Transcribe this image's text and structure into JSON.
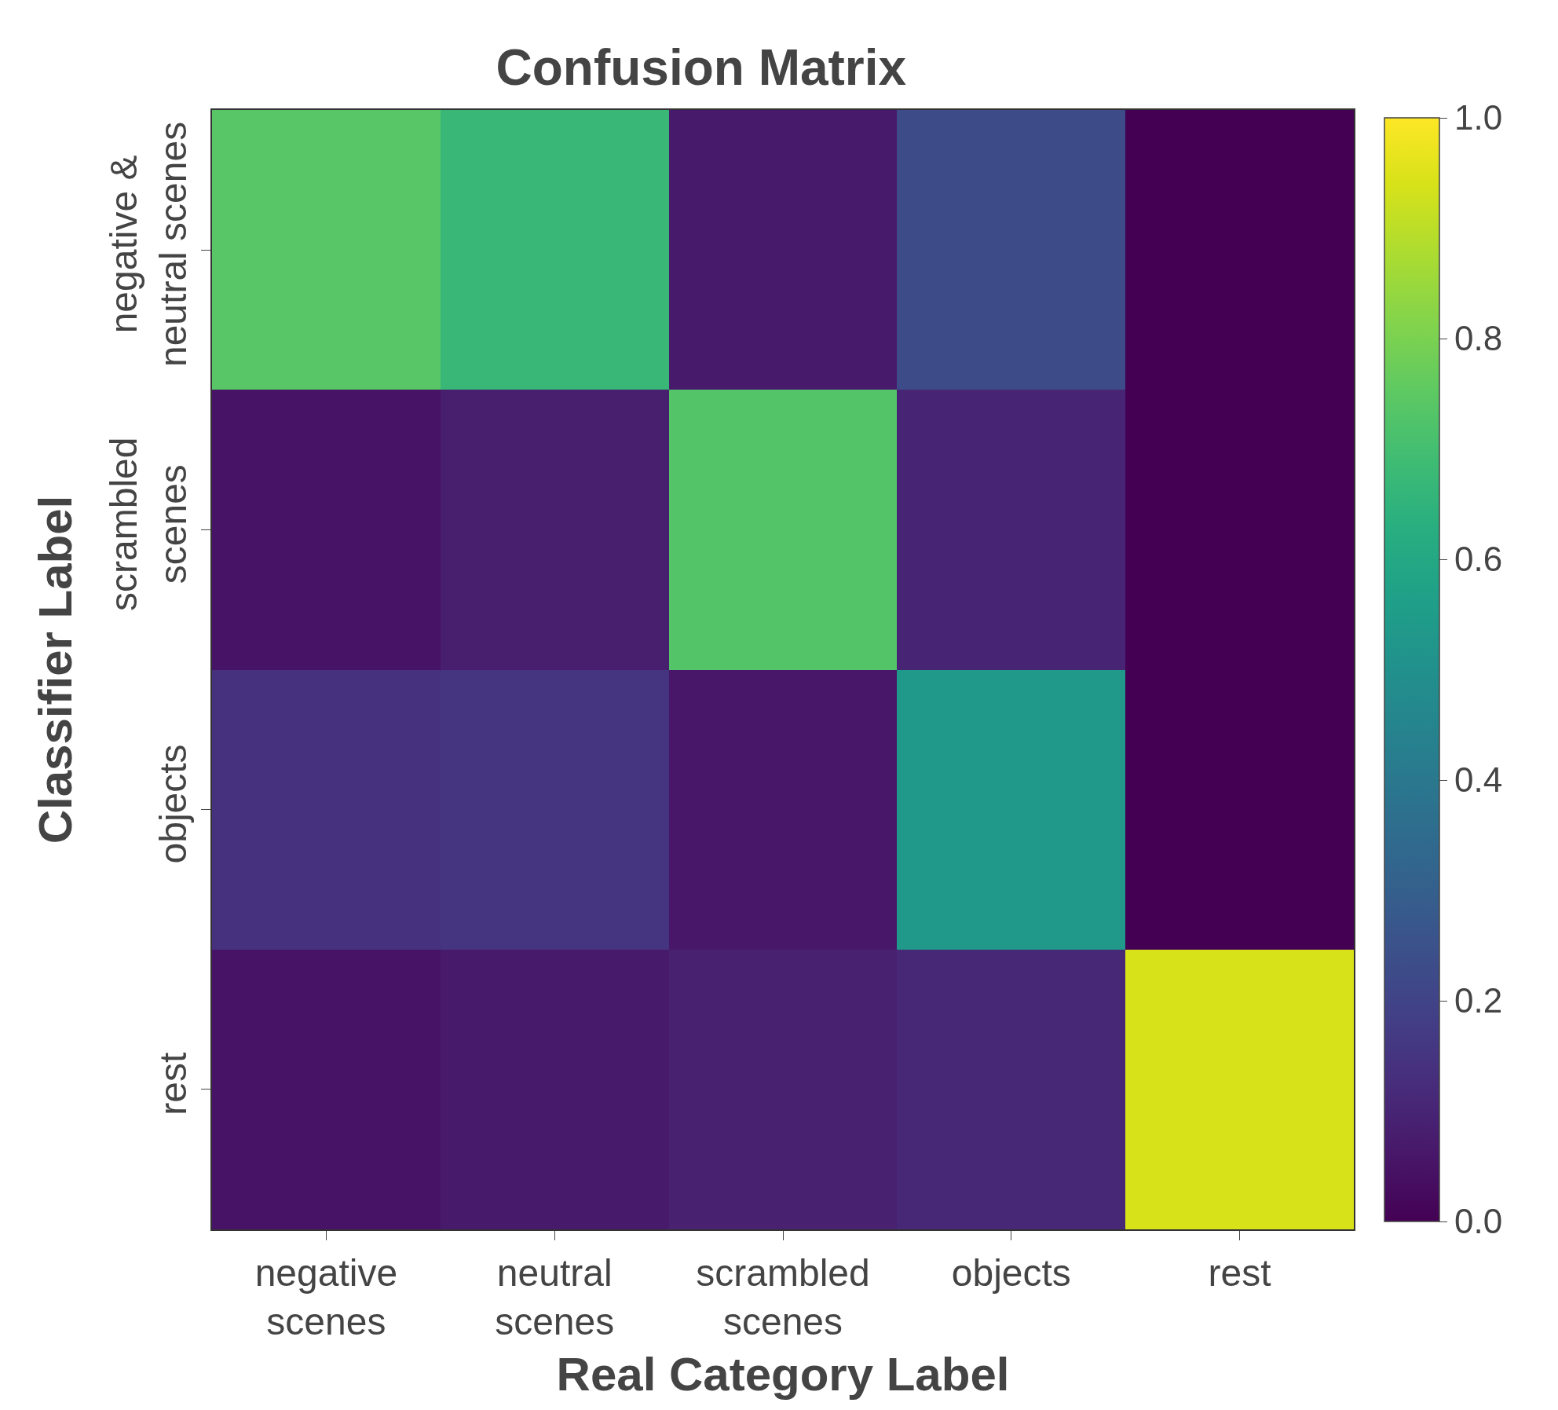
{
  "chart_data": {
    "type": "heatmap",
    "title": "Confusion Matrix",
    "xlabel": "Real Category Label",
    "ylabel": "Classifier Label",
    "categories": [
      "negative\nscenes",
      "neutral\nscenes",
      "scrambled\nscenes",
      "objects",
      "rest"
    ],
    "y_categories": [
      "negative &\nneutral scenes",
      "scrambled\nscenes",
      "objects",
      "rest"
    ],
    "cells": [
      [
        0.74,
        0.67,
        0.07,
        0.23,
        0.0
      ],
      [
        0.05,
        0.08,
        0.73,
        0.1,
        0.0
      ],
      [
        0.14,
        0.15,
        0.06,
        0.53,
        0.0
      ],
      [
        0.05,
        0.07,
        0.09,
        0.11,
        0.94
      ]
    ],
    "clim": [
      0,
      1
    ],
    "cticks": [
      {
        "value": 0,
        "label": "0.0"
      },
      {
        "value": 0.2,
        "label": "0.2"
      },
      {
        "value": 0.4,
        "label": "0.4"
      },
      {
        "value": 0.6,
        "label": "0.6"
      },
      {
        "value": 0.8,
        "label": "0.8"
      },
      {
        "value": 1,
        "label": "1.0"
      }
    ]
  }
}
